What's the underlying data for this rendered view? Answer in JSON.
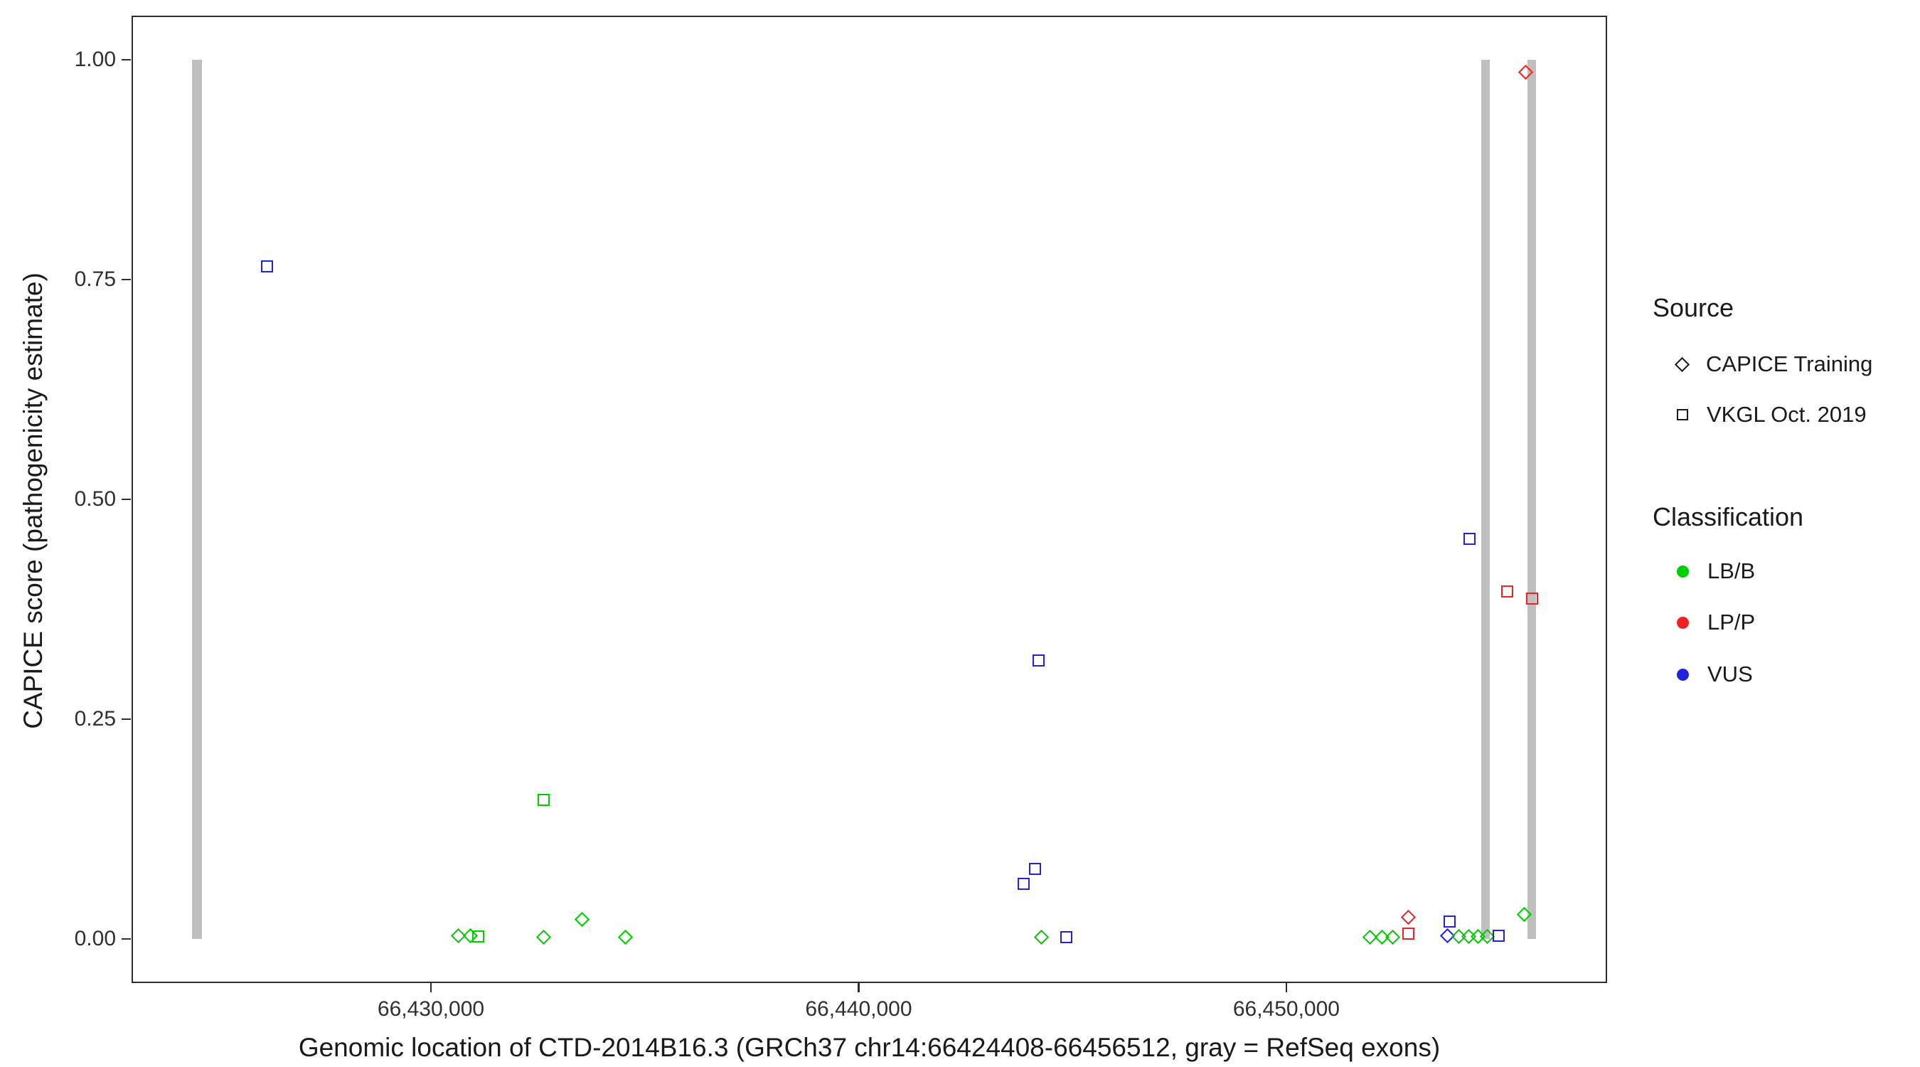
{
  "figure": {
    "background": "#ffffff",
    "panel_border_color": "#2e2e2e"
  },
  "legend": {
    "source": {
      "title": "Source",
      "items": [
        {
          "label": "CAPICE Training",
          "shape": "diamond"
        },
        {
          "label": "VKGL Oct. 2019",
          "shape": "square"
        }
      ]
    },
    "classification": {
      "title": "Classification",
      "items": [
        {
          "label": "LB/B",
          "color": "#00cc00"
        },
        {
          "label": "LP/P",
          "color": "#ee2222"
        },
        {
          "label": "VUS",
          "color": "#2222dd"
        }
      ]
    }
  },
  "chart_data": {
    "type": "scatter",
    "title": "",
    "xlabel": "Genomic location of CTD-2014B16.3 (GRCh37 chr14:66424408-66456512, gray = RefSeq exons)",
    "ylabel": "CAPICE score (pathogenicity estimate)",
    "xlim": [
      66423000,
      66457500
    ],
    "ylim": [
      -0.05,
      1.05
    ],
    "grid": false,
    "legend_position": "right",
    "x_ticks": [
      {
        "value": 66430000,
        "label": "66,430,000"
      },
      {
        "value": 66440000,
        "label": "66,440,000"
      },
      {
        "value": 66450000,
        "label": "66,450,000"
      }
    ],
    "y_ticks": [
      {
        "value": 0.0,
        "label": "0.00"
      },
      {
        "value": 0.25,
        "label": "0.25"
      },
      {
        "value": 0.5,
        "label": "0.50"
      },
      {
        "value": 0.75,
        "label": "0.75"
      },
      {
        "value": 1.0,
        "label": "1.00"
      }
    ],
    "shape_encoding": {
      "CAPICE Training": "diamond",
      "VKGL Oct. 2019": "square"
    },
    "color_encoding": {
      "LB/B": "#00cc00",
      "LP/P": "#ee2222",
      "VUS": "#2222dd"
    },
    "exon_color": "#bfbfbf",
    "exons": [
      {
        "start": 66424408,
        "end": 66424650
      },
      {
        "start": 66454560,
        "end": 66454760
      },
      {
        "start": 66455640,
        "end": 66455840
      }
    ],
    "points": [
      {
        "x": 66426170,
        "y": 0.765,
        "source": "VKGL Oct. 2019",
        "classification": "VUS"
      },
      {
        "x": 66430640,
        "y": 0.004,
        "source": "CAPICE Training",
        "classification": "LB/B"
      },
      {
        "x": 66430930,
        "y": 0.004,
        "source": "CAPICE Training",
        "classification": "LB/B"
      },
      {
        "x": 66431110,
        "y": 0.003,
        "source": "VKGL Oct. 2019",
        "classification": "LB/B"
      },
      {
        "x": 66432640,
        "y": 0.158,
        "source": "VKGL Oct. 2019",
        "classification": "LB/B"
      },
      {
        "x": 66432640,
        "y": 0.002,
        "source": "CAPICE Training",
        "classification": "LB/B"
      },
      {
        "x": 66433540,
        "y": 0.022,
        "source": "CAPICE Training",
        "classification": "LB/B"
      },
      {
        "x": 66434540,
        "y": 0.002,
        "source": "CAPICE Training",
        "classification": "LB/B"
      },
      {
        "x": 66443860,
        "y": 0.063,
        "source": "VKGL Oct. 2019",
        "classification": "VUS"
      },
      {
        "x": 66444120,
        "y": 0.08,
        "source": "VKGL Oct. 2019",
        "classification": "VUS"
      },
      {
        "x": 66444210,
        "y": 0.317,
        "source": "VKGL Oct. 2019",
        "classification": "VUS"
      },
      {
        "x": 66444270,
        "y": 0.002,
        "source": "CAPICE Training",
        "classification": "LB/B"
      },
      {
        "x": 66444850,
        "y": 0.002,
        "source": "VKGL Oct. 2019",
        "classification": "VUS"
      },
      {
        "x": 66451960,
        "y": 0.002,
        "source": "CAPICE Training",
        "classification": "LB/B"
      },
      {
        "x": 66452230,
        "y": 0.002,
        "source": "CAPICE Training",
        "classification": "LB/B"
      },
      {
        "x": 66452490,
        "y": 0.002,
        "source": "CAPICE Training",
        "classification": "LB/B"
      },
      {
        "x": 66452860,
        "y": 0.025,
        "source": "CAPICE Training",
        "classification": "LP/P"
      },
      {
        "x": 66452860,
        "y": 0.006,
        "source": "VKGL Oct. 2019",
        "classification": "LP/P"
      },
      {
        "x": 66453770,
        "y": 0.004,
        "source": "CAPICE Training",
        "classification": "VUS"
      },
      {
        "x": 66453820,
        "y": 0.02,
        "source": "VKGL Oct. 2019",
        "classification": "VUS"
      },
      {
        "x": 66454030,
        "y": 0.003,
        "source": "CAPICE Training",
        "classification": "LB/B"
      },
      {
        "x": 66454260,
        "y": 0.003,
        "source": "CAPICE Training",
        "classification": "LB/B"
      },
      {
        "x": 66454290,
        "y": 0.455,
        "source": "VKGL Oct. 2019",
        "classification": "VUS"
      },
      {
        "x": 66454490,
        "y": 0.003,
        "source": "CAPICE Training",
        "classification": "LB/B"
      },
      {
        "x": 66454700,
        "y": 0.003,
        "source": "CAPICE Training",
        "classification": "LB/B"
      },
      {
        "x": 66454960,
        "y": 0.004,
        "source": "VKGL Oct. 2019",
        "classification": "VUS"
      },
      {
        "x": 66455160,
        "y": 0.395,
        "source": "VKGL Oct. 2019",
        "classification": "LP/P"
      },
      {
        "x": 66455570,
        "y": 0.028,
        "source": "CAPICE Training",
        "classification": "LB/B"
      },
      {
        "x": 66455600,
        "y": 0.986,
        "source": "CAPICE Training",
        "classification": "LP/P"
      },
      {
        "x": 66455740,
        "y": 0.387,
        "source": "VKGL Oct. 2019",
        "classification": "LP/P"
      }
    ]
  }
}
